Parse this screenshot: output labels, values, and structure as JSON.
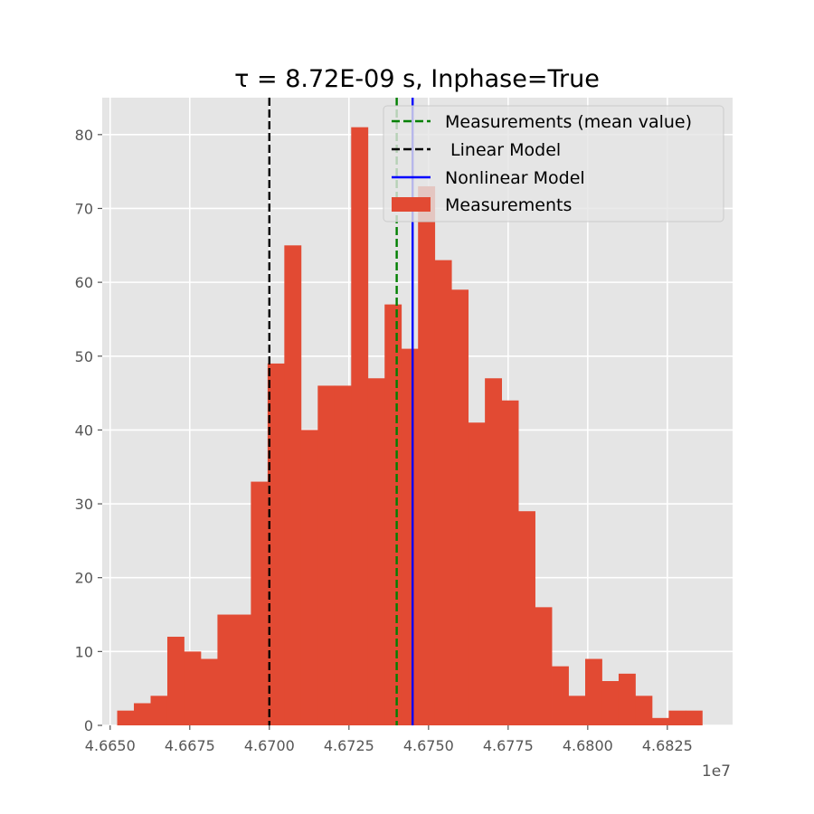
{
  "chart_data": {
    "type": "bar",
    "title": "τ = 8.72E-09 s, Inphase=True",
    "xlabel": "",
    "ylabel": "",
    "x_offset_label": "1e7",
    "xlim": [
      4.66475,
      4.68455
    ],
    "ylim": [
      0,
      85
    ],
    "xticks": [
      4.665,
      4.6675,
      4.67,
      4.6725,
      4.675,
      4.6775,
      4.68,
      4.6825
    ],
    "xtick_labels": [
      "4.6650",
      "4.6675",
      "4.6700",
      "4.6725",
      "4.6750",
      "4.6775",
      "4.6800",
      "4.6825"
    ],
    "yticks": [
      0,
      10,
      20,
      30,
      40,
      50,
      60,
      70,
      80
    ],
    "ytick_labels": [
      "0",
      "10",
      "20",
      "30",
      "40",
      "50",
      "60",
      "70",
      "80"
    ],
    "grid": true,
    "legend_position": "top-right",
    "histogram": {
      "name": "Measurements",
      "color": "#E24A33",
      "bin_start": 4.66522,
      "bin_width": 0.000525,
      "counts": [
        2,
        3,
        4,
        12,
        10,
        9,
        15,
        15,
        33,
        49,
        65,
        40,
        46,
        46,
        81,
        47,
        57,
        51,
        73,
        63,
        59,
        41,
        47,
        44,
        29,
        16,
        8,
        4,
        9,
        6,
        7,
        4,
        1,
        2,
        2
      ]
    },
    "lines": [
      {
        "name": "Measurements (mean value)",
        "x": 4.674,
        "color": "#008000",
        "style": "dashed"
      },
      {
        "name": " Linear Model",
        "x": 4.67,
        "color": "#000000",
        "style": "dashed"
      },
      {
        "name": "Nonlinear Model",
        "x": 4.6745,
        "color": "#0000FF",
        "style": "solid"
      }
    ]
  }
}
